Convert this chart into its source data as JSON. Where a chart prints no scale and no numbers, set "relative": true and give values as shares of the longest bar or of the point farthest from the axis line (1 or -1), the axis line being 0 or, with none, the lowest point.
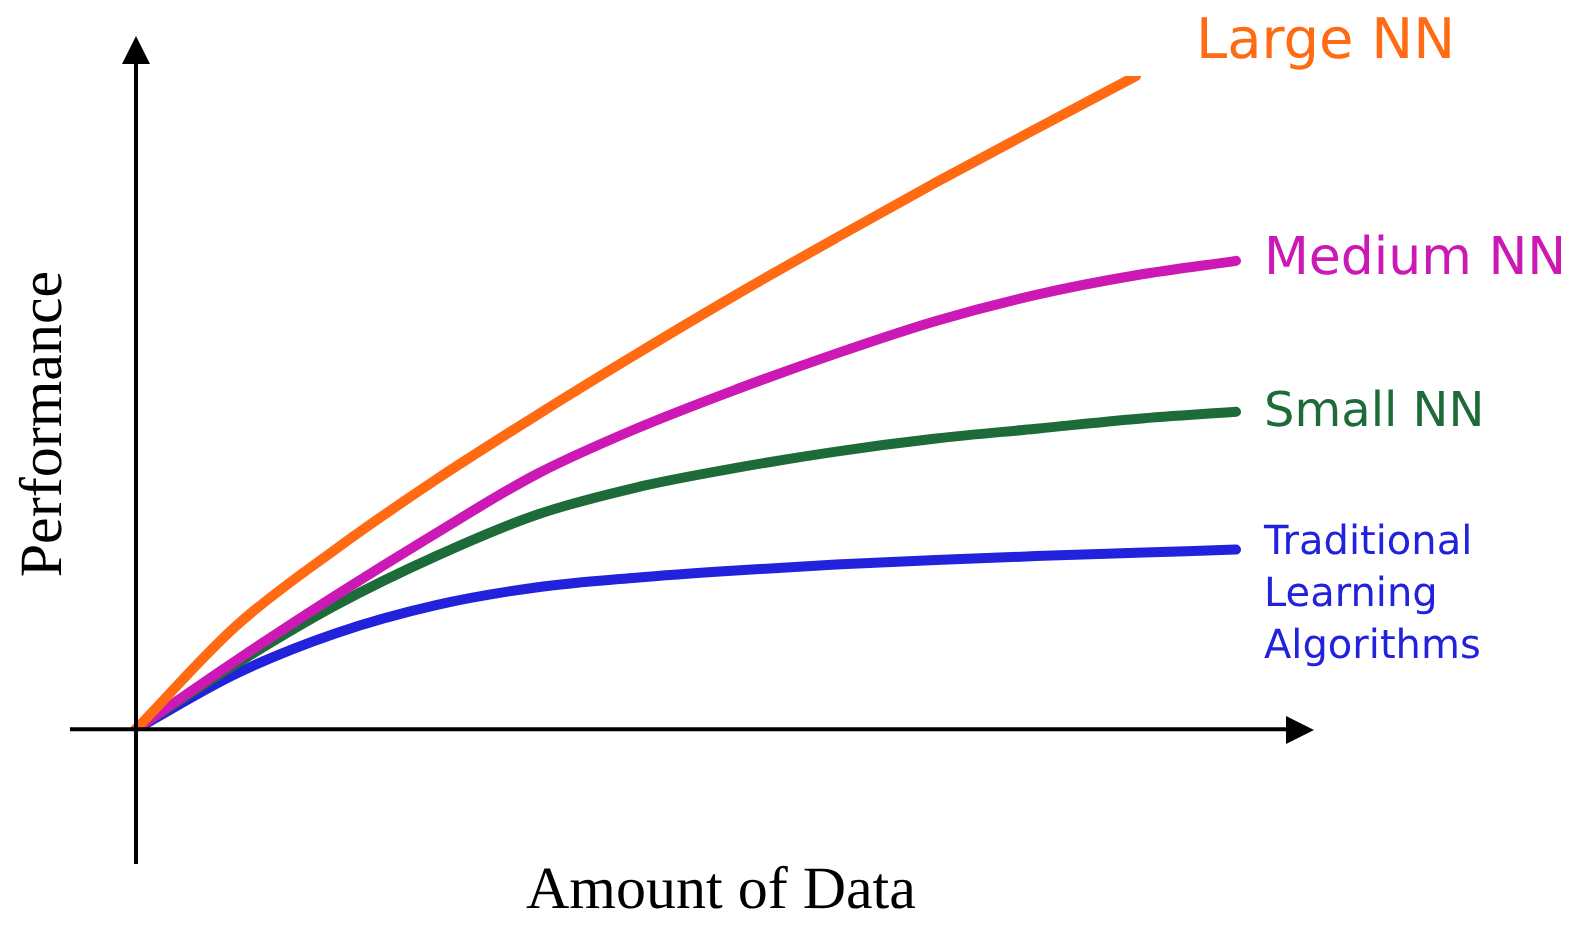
{
  "chart_data": {
    "type": "line",
    "relative": true,
    "xlabel": "Amount of Data",
    "ylabel": "Performance",
    "legend": false,
    "grid": false,
    "marker": "none",
    "line_style": "solid",
    "categories": [
      null,
      null,
      null,
      null,
      null,
      null,
      null,
      null,
      null,
      null,
      null,
      null
    ],
    "series": [
      {
        "name": "Large NN",
        "color": "#ff6a13",
        "values": [
          0,
          0.158,
          0.276,
          0.382,
          0.48,
          0.574,
          0.665,
          0.752,
          0.837,
          0.919,
          1.0,
          null
        ]
      },
      {
        "name": "Medium NN",
        "color": "#cc18b4",
        "values": [
          0,
          0.105,
          0.205,
          0.3,
          0.39,
          0.46,
          0.52,
          0.575,
          0.625,
          0.665,
          0.695,
          0.717
        ]
      },
      {
        "name": "Small NN",
        "color": "#1e6b3a",
        "values": [
          0,
          0.1,
          0.19,
          0.265,
          0.328,
          0.37,
          0.4,
          0.425,
          0.445,
          0.46,
          0.475,
          0.486
        ]
      },
      {
        "name": "Traditional Learning Algorithms",
        "color": "#2222dd",
        "values": [
          0,
          0.085,
          0.147,
          0.19,
          0.217,
          0.232,
          0.243,
          0.252,
          0.259,
          0.265,
          0.27,
          0.275
        ]
      }
    ]
  }
}
